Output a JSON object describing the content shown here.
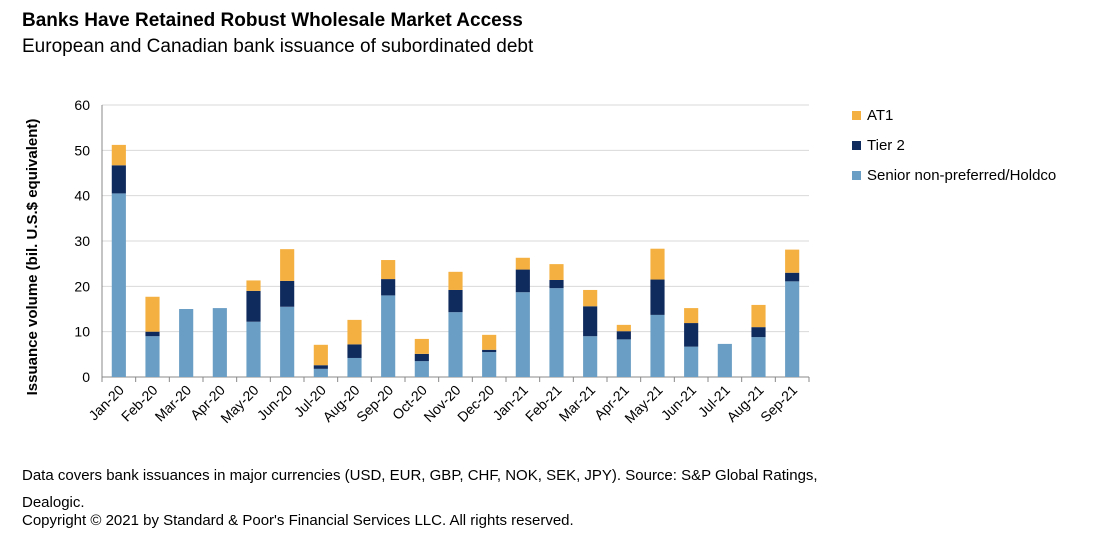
{
  "header": {
    "title": "Banks Have Retained Robust Wholesale Market Access",
    "subtitle": "European and Canadian bank issuance of subordinated debt"
  },
  "footnote": {
    "line1": "Data covers bank issuances in major currencies (USD, EUR, GBP, CHF, NOK, SEK, JPY). Source: S&P Global Ratings, Dealogic.",
    "line2": "Copyright © 2021 by Standard & Poor's Financial Services LLC. All rights reserved."
  },
  "chart_data": {
    "type": "bar",
    "stacked": true,
    "title": "Banks Have Retained Robust Wholesale Market Access",
    "subtitle": "European and Canadian bank issuance of subordinated debt",
    "xlabel": "",
    "ylabel": "Issuance volume (bil. U.S.$ equivalent)",
    "ylim": [
      0,
      60
    ],
    "yticks": [
      0,
      10,
      20,
      30,
      40,
      50,
      60
    ],
    "grid": true,
    "legend_position": "right",
    "categories": [
      "Jan-20",
      "Feb-20",
      "Mar-20",
      "Apr-20",
      "May-20",
      "Jun-20",
      "Jul-20",
      "Aug-20",
      "Sep-20",
      "Oct-20",
      "Nov-20",
      "Dec-20",
      "Jan-21",
      "Feb-21",
      "Mar-21",
      "Apr-21",
      "May-21",
      "Jun-21",
      "Jul-21",
      "Aug-21",
      "Sep-21"
    ],
    "series": [
      {
        "name": "Senior non-preferred/Holdco",
        "color": "#6a9ec5",
        "values": [
          40.5,
          9.0,
          15.0,
          15.2,
          12.2,
          15.5,
          1.8,
          4.2,
          18.0,
          3.5,
          14.3,
          5.5,
          18.7,
          19.6,
          9.0,
          8.3,
          13.7,
          6.7,
          7.3,
          8.8,
          21.1
        ]
      },
      {
        "name": "Tier 2",
        "color": "#0f2a5c",
        "values": [
          6.2,
          1.0,
          0.0,
          0.0,
          6.8,
          5.7,
          0.8,
          3.0,
          3.6,
          1.6,
          4.9,
          0.5,
          5.0,
          1.8,
          6.6,
          1.8,
          7.8,
          5.2,
          0.0,
          2.2,
          1.9
        ]
      },
      {
        "name": "AT1",
        "color": "#f4b040",
        "values": [
          4.5,
          7.7,
          0.0,
          0.0,
          2.3,
          7.0,
          4.5,
          5.4,
          4.2,
          3.3,
          4.0,
          3.3,
          2.6,
          3.5,
          3.6,
          1.4,
          6.8,
          3.3,
          0.0,
          4.9,
          5.1
        ]
      }
    ],
    "legend": [
      {
        "name": "AT1",
        "color": "#f4b040"
      },
      {
        "name": "Tier 2",
        "color": "#0f2a5c"
      },
      {
        "name": "Senior non-preferred/Holdco",
        "color": "#6a9ec5"
      }
    ]
  }
}
